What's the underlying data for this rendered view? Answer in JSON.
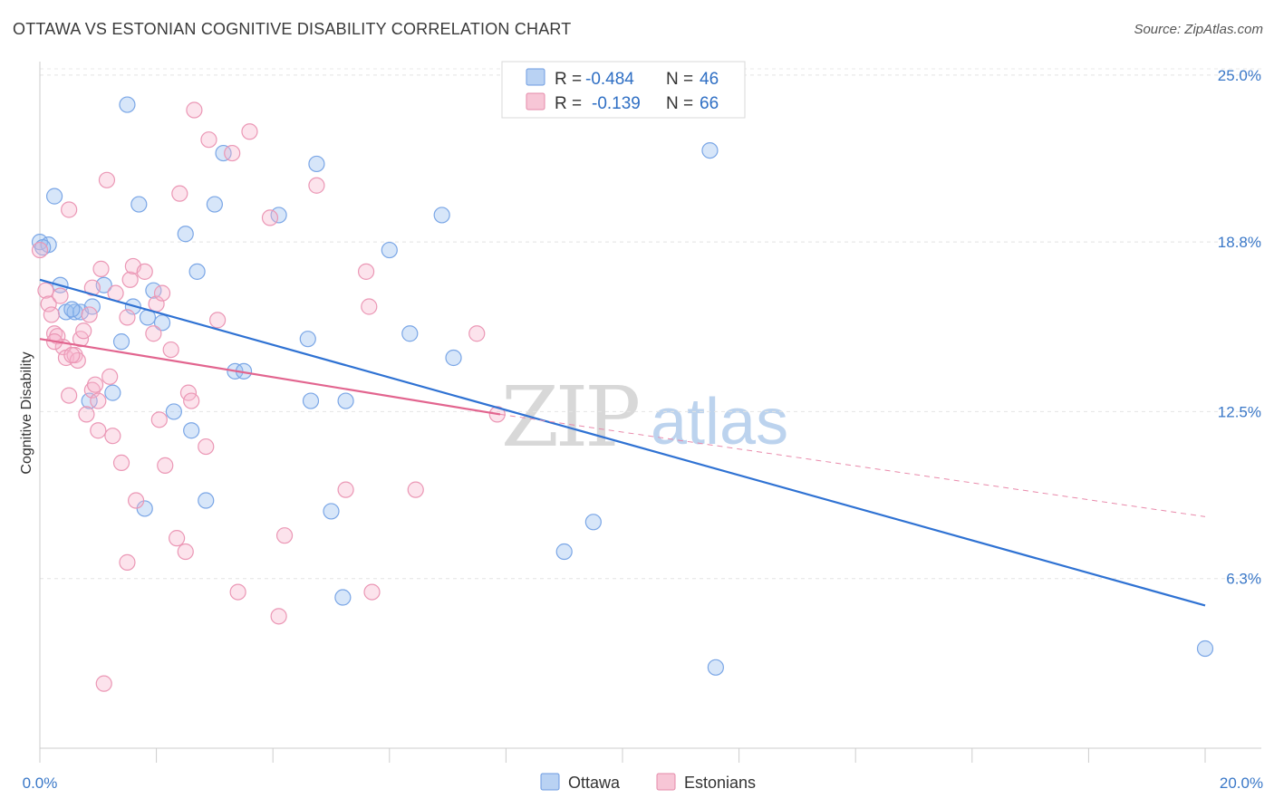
{
  "header": {
    "title": "OTTAWA VS ESTONIAN COGNITIVE DISABILITY CORRELATION CHART",
    "source": "Source: ZipAtlas.com"
  },
  "watermark": {
    "part1": "ZIP",
    "part2": "atlas"
  },
  "legend": {
    "rows": [
      {
        "r_label": "R =",
        "r_value": "-0.484",
        "n_label": "N =",
        "n_value": "46"
      },
      {
        "r_label": "R =",
        "r_value": "-0.139",
        "n_label": "N =",
        "n_value": "66"
      }
    ]
  },
  "bottom_legend": {
    "series1": "Ottawa",
    "series2": "Estonians"
  },
  "chart_data": {
    "type": "scatter",
    "title": "OTTAWA VS ESTONIAN COGNITIVE DISABILITY CORRELATION CHART",
    "xlabel": "",
    "ylabel": "Cognitive Disability",
    "xlim": [
      0,
      20
    ],
    "ylim": [
      0,
      25.5
    ],
    "x_tick_labels": [
      "0.0%",
      "20.0%"
    ],
    "y_ticks": [
      6.3,
      12.5,
      18.8,
      25.0
    ],
    "y_tick_labels": [
      "6.3%",
      "12.5%",
      "18.8%",
      "25.0%"
    ],
    "grid": true,
    "legend_position": "top-center",
    "colors": {
      "Ottawa": "#3b7ddd",
      "Estonians": "#e8709a"
    },
    "series": [
      {
        "name": "Ottawa",
        "trend": {
          "x": [
            0,
            20
          ],
          "y": [
            17.4,
            5.3
          ]
        },
        "points": [
          [
            0.0,
            18.8
          ],
          [
            0.15,
            18.7
          ],
          [
            0.25,
            20.5
          ],
          [
            0.35,
            17.2
          ],
          [
            0.45,
            16.2
          ],
          [
            0.6,
            16.2
          ],
          [
            0.7,
            16.2
          ],
          [
            0.9,
            16.4
          ],
          [
            1.1,
            17.2
          ],
          [
            1.25,
            13.2
          ],
          [
            1.4,
            15.1
          ],
          [
            1.5,
            23.9
          ],
          [
            1.6,
            16.4
          ],
          [
            1.7,
            20.2
          ],
          [
            1.85,
            16.0
          ],
          [
            1.95,
            17.0
          ],
          [
            2.1,
            15.8
          ],
          [
            2.3,
            12.5
          ],
          [
            2.5,
            19.1
          ],
          [
            2.6,
            11.8
          ],
          [
            2.7,
            17.7
          ],
          [
            2.85,
            9.2
          ],
          [
            3.0,
            20.2
          ],
          [
            3.15,
            22.1
          ],
          [
            3.35,
            14.0
          ],
          [
            3.5,
            14.0
          ],
          [
            4.1,
            19.8
          ],
          [
            4.6,
            15.2
          ],
          [
            4.65,
            12.9
          ],
          [
            4.75,
            21.7
          ],
          [
            5.0,
            8.8
          ],
          [
            5.2,
            5.6
          ],
          [
            5.25,
            12.9
          ],
          [
            6.0,
            18.5
          ],
          [
            6.35,
            15.4
          ],
          [
            6.9,
            19.8
          ],
          [
            7.1,
            14.5
          ],
          [
            9.0,
            7.3
          ],
          [
            9.5,
            8.4
          ],
          [
            11.5,
            22.2
          ],
          [
            11.6,
            3.0
          ],
          [
            20.0,
            3.7
          ],
          [
            0.85,
            12.9
          ],
          [
            1.8,
            8.9
          ],
          [
            0.55,
            16.3
          ],
          [
            0.05,
            18.6
          ]
        ]
      },
      {
        "name": "Estonians",
        "trend": {
          "x": [
            0,
            7.9
          ],
          "y": [
            15.2,
            12.4
          ]
        },
        "trend_dashed": {
          "x": [
            7.9,
            20
          ],
          "y": [
            12.4,
            8.6
          ]
        },
        "points": [
          [
            0.0,
            18.5
          ],
          [
            0.1,
            17.0
          ],
          [
            0.15,
            16.5
          ],
          [
            0.2,
            16.1
          ],
          [
            0.25,
            15.4
          ],
          [
            0.3,
            15.3
          ],
          [
            0.35,
            16.8
          ],
          [
            0.4,
            14.9
          ],
          [
            0.45,
            14.5
          ],
          [
            0.5,
            20.0
          ],
          [
            0.5,
            13.1
          ],
          [
            0.6,
            14.6
          ],
          [
            0.65,
            14.4
          ],
          [
            0.7,
            15.2
          ],
          [
            0.75,
            15.5
          ],
          [
            0.8,
            12.4
          ],
          [
            0.85,
            16.1
          ],
          [
            0.9,
            13.3
          ],
          [
            0.9,
            17.1
          ],
          [
            0.95,
            13.5
          ],
          [
            1.0,
            11.8
          ],
          [
            1.05,
            17.8
          ],
          [
            1.1,
            2.4
          ],
          [
            1.15,
            21.1
          ],
          [
            1.2,
            13.8
          ],
          [
            1.25,
            11.6
          ],
          [
            1.3,
            16.9
          ],
          [
            1.4,
            10.6
          ],
          [
            1.5,
            16.0
          ],
          [
            1.5,
            6.9
          ],
          [
            1.55,
            17.4
          ],
          [
            1.6,
            17.9
          ],
          [
            1.65,
            9.2
          ],
          [
            1.8,
            17.7
          ],
          [
            1.95,
            15.4
          ],
          [
            2.0,
            16.5
          ],
          [
            2.1,
            16.9
          ],
          [
            2.05,
            12.2
          ],
          [
            2.15,
            10.5
          ],
          [
            2.25,
            14.8
          ],
          [
            2.35,
            7.8
          ],
          [
            2.4,
            20.6
          ],
          [
            2.5,
            7.3
          ],
          [
            2.55,
            13.2
          ],
          [
            2.6,
            12.9
          ],
          [
            2.65,
            23.7
          ],
          [
            2.85,
            11.2
          ],
          [
            2.9,
            22.6
          ],
          [
            3.05,
            15.9
          ],
          [
            3.3,
            22.1
          ],
          [
            3.4,
            5.8
          ],
          [
            3.6,
            22.9
          ],
          [
            3.95,
            19.7
          ],
          [
            4.1,
            4.9
          ],
          [
            4.2,
            7.9
          ],
          [
            4.75,
            20.9
          ],
          [
            5.25,
            9.6
          ],
          [
            5.6,
            17.7
          ],
          [
            5.65,
            16.4
          ],
          [
            5.7,
            5.8
          ],
          [
            6.45,
            9.6
          ],
          [
            7.5,
            15.4
          ],
          [
            7.85,
            12.4
          ],
          [
            0.25,
            15.1
          ],
          [
            0.55,
            14.6
          ],
          [
            1.0,
            12.9
          ]
        ]
      }
    ]
  }
}
